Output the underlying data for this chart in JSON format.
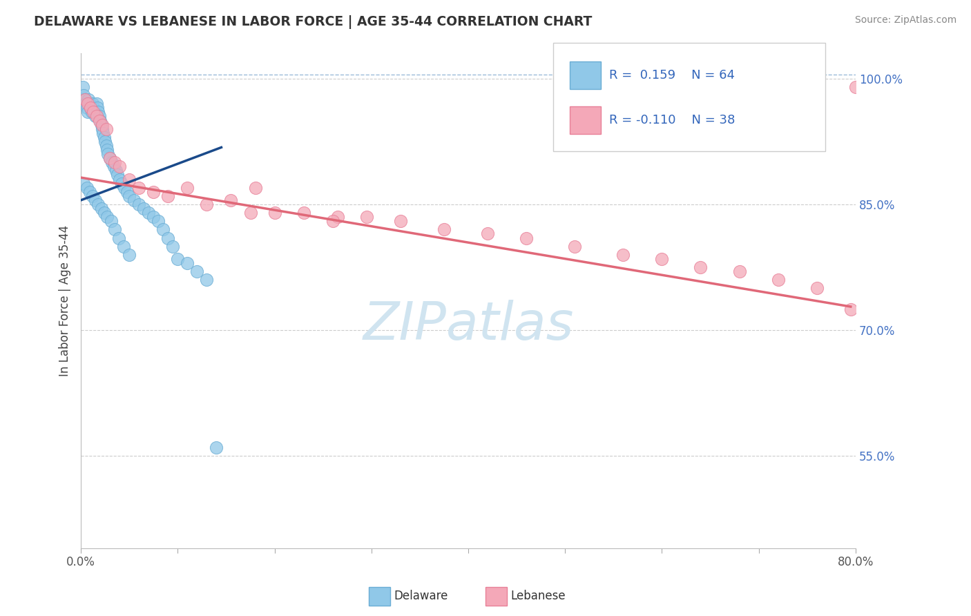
{
  "title": "DELAWARE VS LEBANESE IN LABOR FORCE | AGE 35-44 CORRELATION CHART",
  "source": "Source: ZipAtlas.com",
  "ylabel": "In Labor Force | Age 35-44",
  "xlim": [
    0.0,
    0.8
  ],
  "ylim": [
    0.44,
    1.03
  ],
  "xtick_positions": [
    0.0,
    0.1,
    0.2,
    0.3,
    0.4,
    0.5,
    0.6,
    0.7,
    0.8
  ],
  "xticklabels": [
    "0.0%",
    "",
    "",
    "",
    "",
    "",
    "",
    "",
    "80.0%"
  ],
  "yticks_right": [
    0.55,
    0.7,
    0.85,
    1.0
  ],
  "yticklabels_right": [
    "55.0%",
    "70.0%",
    "85.0%",
    "100.0%"
  ],
  "delaware_color": "#90C8E8",
  "delaware_edge": "#6AADD4",
  "lebanese_color": "#F4A8B8",
  "lebanese_edge": "#E88098",
  "blue_line_color": "#1A4A8A",
  "pink_line_color": "#E06878",
  "dashed_line_color": "#9BBCD8",
  "legend_color1": "#90C8E8",
  "legend_color2": "#F4A8B8",
  "watermark_text": "ZIPatlas",
  "watermark_color": "#D0E4F0",
  "delaware_x": [
    0.002,
    0.003,
    0.004,
    0.005,
    0.006,
    0.007,
    0.008,
    0.009,
    0.01,
    0.011,
    0.012,
    0.013,
    0.014,
    0.015,
    0.016,
    0.017,
    0.018,
    0.019,
    0.02,
    0.021,
    0.022,
    0.023,
    0.024,
    0.025,
    0.026,
    0.027,
    0.028,
    0.03,
    0.032,
    0.034,
    0.036,
    0.038,
    0.04,
    0.042,
    0.045,
    0.048,
    0.05,
    0.055,
    0.06,
    0.065,
    0.07,
    0.075,
    0.08,
    0.085,
    0.09,
    0.095,
    0.1,
    0.11,
    0.12,
    0.13,
    0.14,
    0.003,
    0.006,
    0.009,
    0.012,
    0.015,
    0.018,
    0.021,
    0.024,
    0.027,
    0.031,
    0.035,
    0.039,
    0.044,
    0.05
  ],
  "delaware_y": [
    0.99,
    0.98,
    0.975,
    0.97,
    0.965,
    0.96,
    0.975,
    0.97,
    0.965,
    0.96,
    0.97,
    0.965,
    0.96,
    0.955,
    0.97,
    0.965,
    0.96,
    0.955,
    0.95,
    0.945,
    0.94,
    0.935,
    0.93,
    0.925,
    0.92,
    0.915,
    0.91,
    0.905,
    0.9,
    0.895,
    0.89,
    0.885,
    0.88,
    0.875,
    0.87,
    0.865,
    0.86,
    0.855,
    0.85,
    0.845,
    0.84,
    0.835,
    0.83,
    0.82,
    0.81,
    0.8,
    0.785,
    0.78,
    0.77,
    0.76,
    0.56,
    0.875,
    0.87,
    0.865,
    0.86,
    0.855,
    0.85,
    0.845,
    0.84,
    0.835,
    0.83,
    0.82,
    0.81,
    0.8,
    0.79
  ],
  "lebanese_x": [
    0.004,
    0.007,
    0.01,
    0.013,
    0.016,
    0.019,
    0.022,
    0.026,
    0.03,
    0.035,
    0.04,
    0.05,
    0.06,
    0.075,
    0.09,
    0.11,
    0.13,
    0.155,
    0.175,
    0.2,
    0.23,
    0.265,
    0.295,
    0.33,
    0.375,
    0.42,
    0.46,
    0.51,
    0.56,
    0.6,
    0.64,
    0.68,
    0.72,
    0.76,
    0.795,
    0.8,
    0.18,
    0.26
  ],
  "lebanese_y": [
    0.975,
    0.97,
    0.965,
    0.96,
    0.955,
    0.95,
    0.945,
    0.94,
    0.905,
    0.9,
    0.895,
    0.88,
    0.87,
    0.865,
    0.86,
    0.87,
    0.85,
    0.855,
    0.84,
    0.84,
    0.84,
    0.835,
    0.835,
    0.83,
    0.82,
    0.815,
    0.81,
    0.8,
    0.79,
    0.785,
    0.775,
    0.77,
    0.76,
    0.75,
    0.725,
    0.99,
    0.87,
    0.83
  ],
  "blue_line_x": [
    0.0,
    0.145
  ],
  "blue_line_y": [
    0.855,
    0.918
  ],
  "pink_line_x": [
    0.0,
    0.795
  ],
  "pink_line_y": [
    0.882,
    0.728
  ],
  "dashed_line_x": [
    0.0,
    0.8
  ],
  "dashed_line_y": [
    1.005,
    1.005
  ]
}
